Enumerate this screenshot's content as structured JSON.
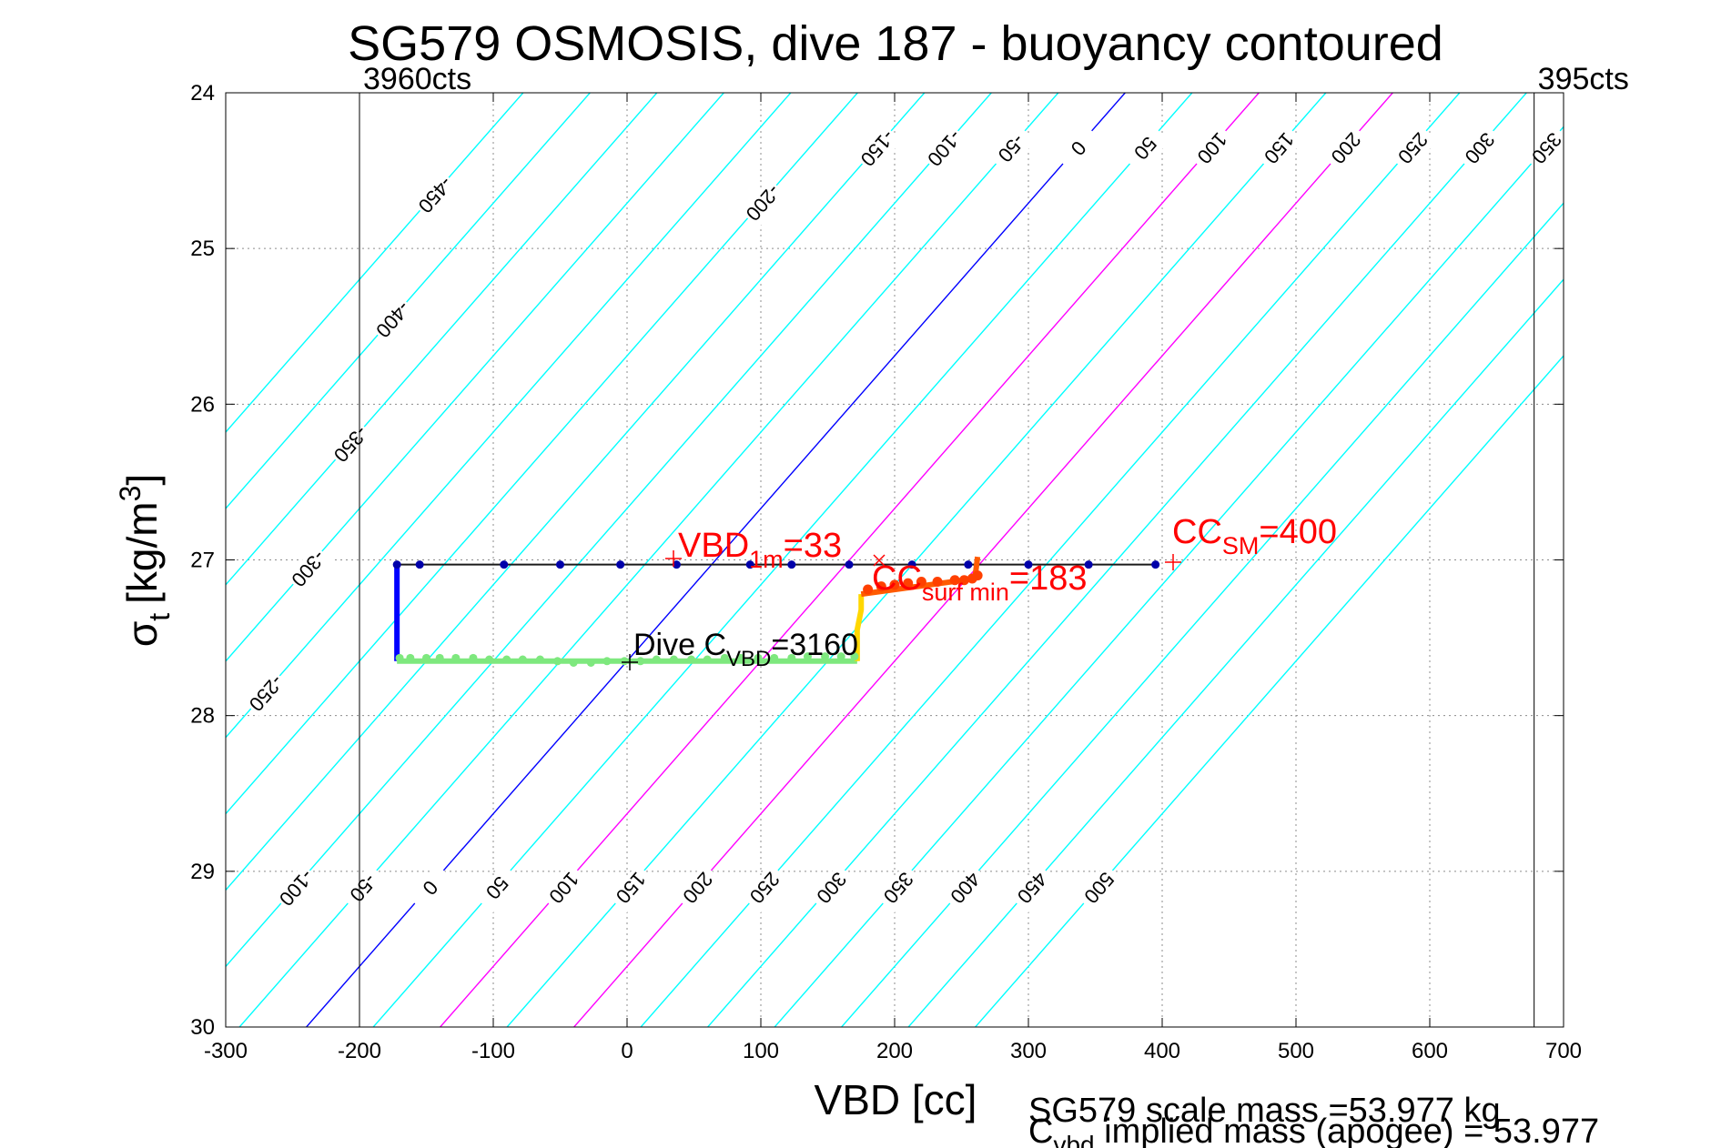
{
  "chart_data": {
    "type": "scatter",
    "title": "SG579 OSMOSIS, dive 187 - buoyancy contoured",
    "xlabel": "VBD [cc]",
    "ylabel_main": "σ",
    "ylabel_sub": "t",
    "ylabel_unit": "[kg/m",
    "ylabel_sup": "3",
    "ylabel_close": "]",
    "xlim": [
      -300,
      700
    ],
    "ylim": [
      24,
      30
    ],
    "y_reversed": true,
    "grid": true,
    "xticks": [
      -300,
      -200,
      -100,
      0,
      100,
      200,
      300,
      400,
      500,
      600,
      700
    ],
    "xtick_labels": [
      "-300",
      "-200",
      "-100",
      "0",
      "100",
      "200",
      "300",
      "400",
      "500",
      "600",
      "700"
    ],
    "yticks": [
      24,
      25,
      26,
      27,
      28,
      29,
      30
    ],
    "ytick_labels": [
      "24",
      "25",
      "26",
      "27",
      "28",
      "29",
      "30"
    ],
    "counts_lines": [
      {
        "x": -200,
        "label": "3960cts"
      },
      {
        "x": 678,
        "label": "395cts"
      }
    ],
    "contours": {
      "levels": [
        -450,
        -400,
        -350,
        -300,
        -250,
        -200,
        -150,
        -100,
        -50,
        0,
        50,
        100,
        150,
        200,
        250,
        300,
        350,
        400,
        450,
        500
      ],
      "top_labels": [
        {
          "level": -450,
          "text": "-450"
        },
        {
          "level": -400,
          "text": "-400"
        },
        {
          "level": -350,
          "text": "-350"
        },
        {
          "level": -300,
          "text": "-300"
        },
        {
          "level": -250,
          "text": "-250"
        },
        {
          "level": -200,
          "text": "-200"
        },
        {
          "level": -150,
          "text": "-150"
        },
        {
          "level": -100,
          "text": "-100"
        },
        {
          "level": -50,
          "text": "-50"
        },
        {
          "level": 0,
          "text": "0"
        },
        {
          "level": 50,
          "text": "50"
        },
        {
          "level": 100,
          "text": "100"
        },
        {
          "level": 150,
          "text": "150"
        },
        {
          "level": 200,
          "text": "200"
        },
        {
          "level": 250,
          "text": "250"
        },
        {
          "level": 300,
          "text": "300"
        },
        {
          "level": 350,
          "text": "350"
        },
        {
          "level": 400,
          "text": "400"
        },
        {
          "level": 450,
          "text": "450"
        },
        {
          "level": 500,
          "text": "500"
        }
      ],
      "bottom_labels": [
        {
          "level": -200,
          "text": "-200"
        },
        {
          "level": -150,
          "text": "-150"
        },
        {
          "level": -100,
          "text": "-100"
        },
        {
          "level": -50,
          "text": "-50"
        },
        {
          "level": 0,
          "text": "0"
        },
        {
          "level": 50,
          "text": "50"
        },
        {
          "level": 100,
          "text": "100"
        },
        {
          "level": 150,
          "text": "150"
        },
        {
          "level": 200,
          "text": "200"
        },
        {
          "level": 250,
          "text": "250"
        },
        {
          "level": 300,
          "text": "300"
        },
        {
          "level": 350,
          "text": "350"
        },
        {
          "level": 400,
          "text": "400"
        },
        {
          "level": 450,
          "text": "450"
        },
        {
          "level": 500,
          "text": "500"
        }
      ],
      "highlight_levels": {
        "0": "#0000ff",
        "100": "#ff00ff",
        "200": "#ff00ff"
      },
      "default_color": "#00ffff"
    },
    "dive_series": [
      {
        "x": [
          -172,
          395
        ],
        "y": [
          27.03,
          27.03
        ],
        "color": "#1a1a1a"
      },
      {
        "x": [
          -172,
          -172
        ],
        "y": [
          27.03,
          27.65
        ],
        "color": "#0000ff"
      },
      {
        "x": [
          -172,
          172
        ],
        "y": [
          27.65,
          27.65
        ],
        "color": "#7ee87e"
      },
      {
        "x": [
          172,
          172,
          175,
          175
        ],
        "y": [
          27.65,
          27.45,
          27.32,
          27.22
        ],
        "color": "#ffd700"
      },
      {
        "x": [
          175,
          260,
          262
        ],
        "y": [
          27.22,
          27.12,
          26.98
        ],
        "color": "#ff5a00"
      }
    ],
    "markers_blue": {
      "x": [
        -172,
        -155,
        -92,
        -50,
        -5,
        37,
        92,
        123,
        166,
        213,
        255,
        300,
        345,
        395
      ],
      "y": [
        27.03,
        27.03,
        27.03,
        27.03,
        27.03,
        27.03,
        27.03,
        27.03,
        27.03,
        27.03,
        27.03,
        27.03,
        27.03,
        27.03
      ],
      "color": "#0000aa"
    },
    "markers_green": {
      "x": [
        -170,
        -162,
        -150,
        -140,
        -128,
        -115,
        -103,
        -90,
        -78,
        -65,
        -52,
        -40,
        -27,
        -15,
        -2,
        10,
        22,
        35,
        48,
        60,
        73,
        85,
        98,
        110,
        123,
        135,
        148,
        160,
        170
      ],
      "y": [
        27.63,
        27.63,
        27.63,
        27.63,
        27.63,
        27.63,
        27.64,
        27.64,
        27.64,
        27.64,
        27.65,
        27.66,
        27.66,
        27.65,
        27.65,
        27.65,
        27.64,
        27.64,
        27.64,
        27.64,
        27.63,
        27.63,
        27.63,
        27.63,
        27.63,
        27.62,
        27.62,
        27.62,
        27.62
      ],
      "color": "#7ee87e"
    },
    "markers_orange": {
      "x": [
        180,
        190,
        200,
        210,
        220,
        232,
        245,
        252,
        258,
        262
      ],
      "y": [
        27.19,
        27.17,
        27.16,
        27.15,
        27.14,
        27.14,
        27.13,
        27.13,
        27.12,
        27.1
      ],
      "color": "#ff4000"
    },
    "annotations": [
      {
        "id": "vbd1m",
        "x": 33,
        "y": 26.98,
        "base": "VBD",
        "sub": "1m",
        "rest": "=33",
        "color": "#ff0000",
        "marker": "+"
      },
      {
        "id": "ccsurf",
        "x": 183,
        "y": 26.98,
        "base": "CC",
        "sub": "surf min",
        "rest": "=183",
        "color": "#ff0000",
        "marker": "x"
      },
      {
        "id": "ccsm",
        "x": 400,
        "y": 27.0,
        "base": "CC",
        "sub": "SM",
        "rest": "=400",
        "color": "#ff0000",
        "marker": "+"
      },
      {
        "id": "cvbd",
        "x": 0,
        "y": 27.65,
        "base": "Dive C",
        "sub": "VBD",
        "rest": "=3160",
        "color": "#000000",
        "marker": "+"
      }
    ],
    "footer": {
      "line1": "SG579 scale mass =53.977 kg",
      "line2_base": "C",
      "line2_sub": "vbd",
      "line2_rest": " implied mass (apogee) = 53.977"
    }
  }
}
